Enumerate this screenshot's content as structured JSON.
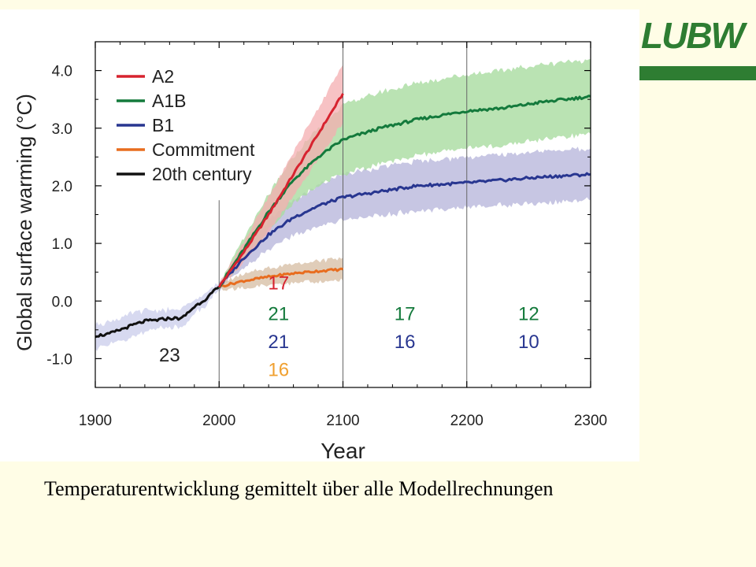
{
  "logo": {
    "text": "LUBW"
  },
  "caption": "Temperaturentwicklung gemittelt über alle Modellrechnungen",
  "colors": {
    "A2": "#d7232f",
    "A1B": "#147a3c",
    "B1": "#283690",
    "Commitment": "#e86d1f",
    "20th century": "#111111",
    "band_A2": "#f4aeb0",
    "band_A1B": "#a9dca0",
    "band_B1": "#b9b8dc",
    "band_Commitment": "#d8c0a8",
    "band_20th": "#cdd0ec",
    "background": "#fffde6",
    "logo_green": "#2e7d32"
  },
  "chart_data": {
    "type": "line",
    "xlabel": "Year",
    "ylabel": "Global surface warming (°C)",
    "xlim": [
      1900,
      2300
    ],
    "ylim": [
      -1.5,
      4.5
    ],
    "xticks": [
      1900,
      2000,
      2100,
      2200,
      2300
    ],
    "yticks": [
      -1.0,
      0.0,
      1.0,
      2.0,
      3.0,
      4.0
    ],
    "ytick_labels": [
      "-1.0",
      "0.0",
      "1.0",
      "2.0",
      "3.0",
      "4.0"
    ],
    "vlines": [
      2000,
      2100,
      2200
    ],
    "legend_position": "top-left",
    "series": [
      {
        "name": "A2",
        "x": [
          2000,
          2020,
          2040,
          2060,
          2080,
          2100
        ],
        "y": [
          0.25,
          0.85,
          1.5,
          2.2,
          2.9,
          3.6
        ],
        "band_width": [
          0.05,
          0.18,
          0.3,
          0.38,
          0.45,
          0.5
        ]
      },
      {
        "name": "A1B",
        "x": [
          2000,
          2020,
          2040,
          2060,
          2080,
          2100,
          2130,
          2160,
          2200,
          2230,
          2260,
          2300
        ],
        "y": [
          0.25,
          0.9,
          1.55,
          2.1,
          2.5,
          2.8,
          3.0,
          3.15,
          3.3,
          3.35,
          3.45,
          3.55
        ],
        "band_width": [
          0.05,
          0.18,
          0.3,
          0.4,
          0.5,
          0.6,
          0.62,
          0.63,
          0.64,
          0.65,
          0.65,
          0.65
        ]
      },
      {
        "name": "B1",
        "x": [
          2000,
          2020,
          2040,
          2060,
          2080,
          2100,
          2130,
          2160,
          2200,
          2230,
          2260,
          2300
        ],
        "y": [
          0.25,
          0.75,
          1.15,
          1.45,
          1.65,
          1.8,
          1.9,
          2.0,
          2.05,
          2.1,
          2.15,
          2.2
        ],
        "band_width": [
          0.05,
          0.15,
          0.25,
          0.3,
          0.35,
          0.4,
          0.42,
          0.43,
          0.44,
          0.44,
          0.45,
          0.45
        ]
      },
      {
        "name": "Commitment",
        "x": [
          2000,
          2020,
          2040,
          2060,
          2080,
          2100
        ],
        "y": [
          0.25,
          0.35,
          0.42,
          0.48,
          0.52,
          0.55
        ],
        "band_width": [
          0.05,
          0.12,
          0.15,
          0.17,
          0.18,
          0.2
        ]
      },
      {
        "name": "20th century",
        "x": [
          1900,
          1910,
          1920,
          1930,
          1940,
          1950,
          1960,
          1970,
          1980,
          1990,
          2000
        ],
        "y": [
          -0.6,
          -0.58,
          -0.5,
          -0.42,
          -0.35,
          -0.33,
          -0.3,
          -0.3,
          -0.1,
          0.05,
          0.25
        ],
        "band_width": [
          0.22,
          0.2,
          0.2,
          0.2,
          0.18,
          0.16,
          0.15,
          0.15,
          0.12,
          0.1,
          0.05
        ]
      }
    ],
    "annotations": [
      {
        "text": "23",
        "x": 1960,
        "y": -1.05,
        "color_key": "20th century"
      },
      {
        "text": "17",
        "x": 2048,
        "y": 0.2,
        "color_key": "A2"
      },
      {
        "text": "21",
        "x": 2048,
        "y": -0.33,
        "color_key": "A1B"
      },
      {
        "text": "21",
        "x": 2048,
        "y": -0.82,
        "color_key": "B1"
      },
      {
        "text": "16",
        "x": 2048,
        "y": -1.3,
        "color_key": "Commitment"
      },
      {
        "text": "17",
        "x": 2150,
        "y": -0.33,
        "color_key": "A1B"
      },
      {
        "text": "16",
        "x": 2150,
        "y": -0.82,
        "color_key": "B1"
      },
      {
        "text": "12",
        "x": 2250,
        "y": -0.33,
        "color_key": "A1B"
      },
      {
        "text": "10",
        "x": 2250,
        "y": -0.82,
        "color_key": "B1"
      }
    ]
  }
}
